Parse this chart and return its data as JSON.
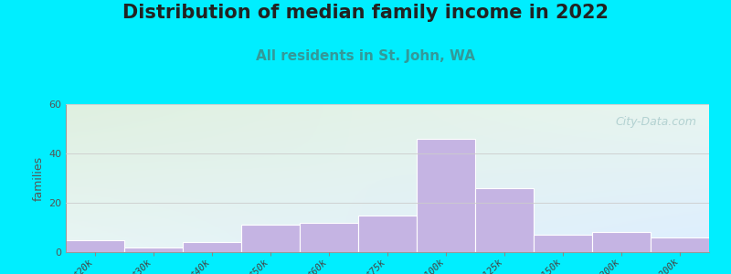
{
  "title": "Distribution of median family income in 2022",
  "subtitle": "All residents in St. John, WA",
  "ylabel": "families",
  "categories": [
    "$20k",
    "$30k",
    "$40k",
    "$50k",
    "$60k",
    "$75k",
    "$100k",
    "$125k",
    "$150k",
    "$200k",
    "> $200k"
  ],
  "values": [
    5,
    2,
    4,
    11,
    12,
    15,
    46,
    26,
    7,
    8,
    6
  ],
  "bar_color": "#c5b4e3",
  "bar_edge_color": "#ffffff",
  "ylim": [
    0,
    60
  ],
  "yticks": [
    0,
    20,
    40,
    60
  ],
  "background_outer": "#00eeff",
  "bg_top_left": "#dff0e0",
  "bg_top_right": "#e8f5f0",
  "bg_bottom_left": "#e8f5f5",
  "bg_bottom_right": "#ddeeff",
  "grid_color": "#cccccc",
  "title_fontsize": 15,
  "subtitle_fontsize": 11,
  "subtitle_color": "#339999",
  "watermark": "City-Data.com",
  "ylabel_fontsize": 9,
  "tick_label_fontsize": 7.5
}
